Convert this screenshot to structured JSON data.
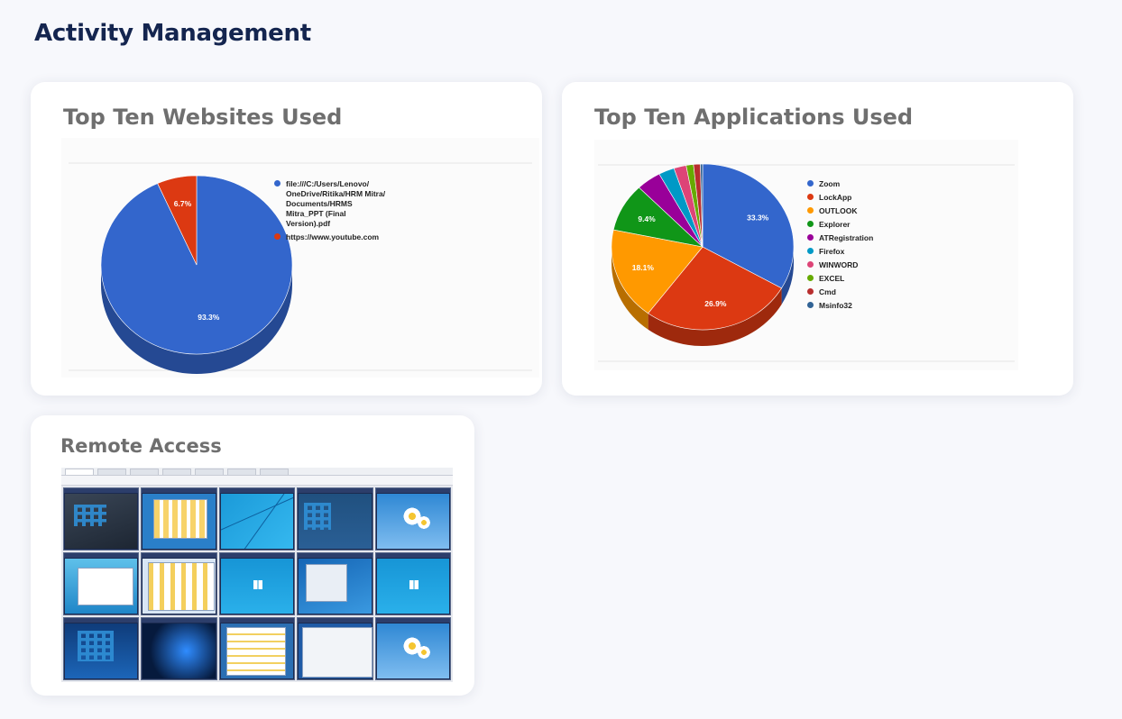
{
  "page": {
    "title": "Activity Management"
  },
  "websites_card": {
    "title": "Top Ten Websites Used",
    "chart_data": {
      "type": "pie",
      "title": "Top Ten Websites Used",
      "labels": [
        "file:///C:/Users/Lenovo/OneDrive/Ritika/HRM Mitra/Documents/HRMS Mitra_PPT (Final Version).pdf",
        "https://www.youtube.com"
      ],
      "legend_display": [
        "file:///C:/Users/Lenovo/\nOneDrive/Ritika/HRM Mitra/\nDocuments/HRMS\nMitra_PPT (Final\nVersion).pdf",
        "https://www.youtube.com"
      ],
      "values": [
        93.3,
        6.7
      ],
      "value_labels": [
        "93.3%",
        "6.7%"
      ],
      "colors": [
        "#3366cc",
        "#dc3912"
      ],
      "legend_position": "right",
      "style": "3d"
    }
  },
  "apps_card": {
    "title": "Top Ten Applications Used",
    "chart_data": {
      "type": "pie",
      "title": "Top Ten Applications Used",
      "labels": [
        "Zoom",
        "LockApp",
        "OUTLOOK",
        "Explorer",
        "ATRegistration",
        "Firefox",
        "WINWORD",
        "EXCEL",
        "Cmd",
        "Msinfo32"
      ],
      "values": [
        33.3,
        26.9,
        18.1,
        9.4,
        4.4,
        2.8,
        2.2,
        1.3,
        1.2,
        0.4
      ],
      "value_labels": [
        "33.3%",
        "26.9%",
        "18.1%",
        "9.4%",
        "",
        "",
        "",
        "",
        "",
        ""
      ],
      "colors": [
        "#3366cc",
        "#dc3912",
        "#ff9900",
        "#109618",
        "#990099",
        "#0099c6",
        "#dd4477",
        "#66aa00",
        "#b82e2e",
        "#316395"
      ],
      "legend_position": "right",
      "style": "3d"
    }
  },
  "remote_card": {
    "title": "Remote Access",
    "screens": [
      "win8-start",
      "explorer-window",
      "win8-lines",
      "win8-start-blue",
      "win8-flower",
      "win7-explorer",
      "file-copy-dialog",
      "windows8-splash",
      "win7-control",
      "windows8-splash",
      "win10-start",
      "win10-logo",
      "win7-files",
      "dialog-window",
      "win8-flower"
    ]
  }
}
